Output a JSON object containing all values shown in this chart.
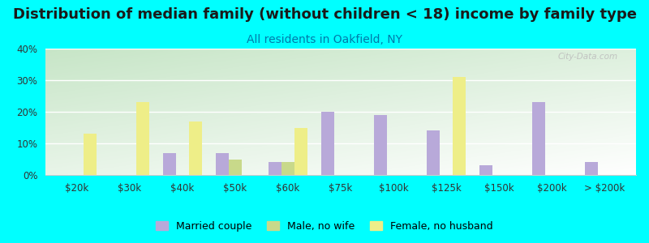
{
  "title": "Distribution of median family (without children < 18) income by family type",
  "subtitle": "All residents in Oakfield, NY",
  "categories": [
    "$20k",
    "$30k",
    "$40k",
    "$50k",
    "$60k",
    "$75k",
    "$100k",
    "$125k",
    "$150k",
    "$200k",
    "> $200k"
  ],
  "series": {
    "Married couple": [
      0,
      0,
      7,
      7,
      4,
      20,
      19,
      14,
      3,
      23,
      4
    ],
    "Male, no wife": [
      0,
      0,
      0,
      5,
      4,
      0,
      0,
      0,
      0,
      0,
      0
    ],
    "Female, no husband": [
      13,
      23,
      17,
      0,
      15,
      0,
      0,
      31,
      0,
      0,
      0
    ]
  },
  "colors": {
    "Married couple": "#b8a9d9",
    "Male, no wife": "#c8d98a",
    "Female, no husband": "#eeee88"
  },
  "ylim": [
    0,
    40
  ],
  "yticks": [
    0,
    10,
    20,
    30,
    40
  ],
  "ytick_labels": [
    "0%",
    "10%",
    "20%",
    "30%",
    "40%"
  ],
  "background_color": "#00ffff",
  "watermark": "City-Data.com",
  "title_fontsize": 13,
  "subtitle_fontsize": 10,
  "subtitle_color": "#007baa",
  "bar_width": 0.25,
  "legend_fontsize": 9
}
